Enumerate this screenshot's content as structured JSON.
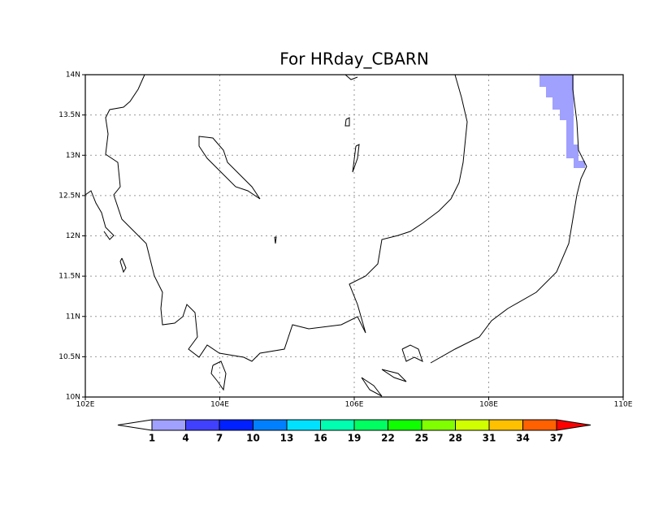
{
  "map": {
    "title": "For HRday_CBARN",
    "xlim": [
      102,
      110
    ],
    "ylim": [
      10,
      14
    ],
    "xticks": [
      {
        "value": 102,
        "label": "102E"
      },
      {
        "value": 104,
        "label": "104E"
      },
      {
        "value": 106,
        "label": "106E"
      },
      {
        "value": 108,
        "label": "108E"
      },
      {
        "value": 110,
        "label": "110E"
      }
    ],
    "yticks": [
      {
        "value": 10,
        "label": "10N"
      },
      {
        "value": 10.5,
        "label": "10.5N"
      },
      {
        "value": 11,
        "label": "11N"
      },
      {
        "value": 11.5,
        "label": "11.5N"
      },
      {
        "value": 12,
        "label": "12N"
      },
      {
        "value": 12.5,
        "label": "12.5N"
      },
      {
        "value": 13,
        "label": "13N"
      },
      {
        "value": 13.5,
        "label": "13.5N"
      },
      {
        "value": 14,
        "label": "14N"
      }
    ],
    "grid": true,
    "colorbar": {
      "levels": [
        1,
        4,
        7,
        10,
        13,
        16,
        19,
        22,
        25,
        28,
        31,
        34,
        37
      ],
      "colors": [
        "#ffffff",
        "#a0a0ff",
        "#4040ff",
        "#0020ff",
        "#0080ff",
        "#00e0ff",
        "#00ffb0",
        "#00ff60",
        "#10ff00",
        "#80ff00",
        "#d0ff00",
        "#ffc000",
        "#ff6000",
        "#ff0000"
      ]
    }
  }
}
